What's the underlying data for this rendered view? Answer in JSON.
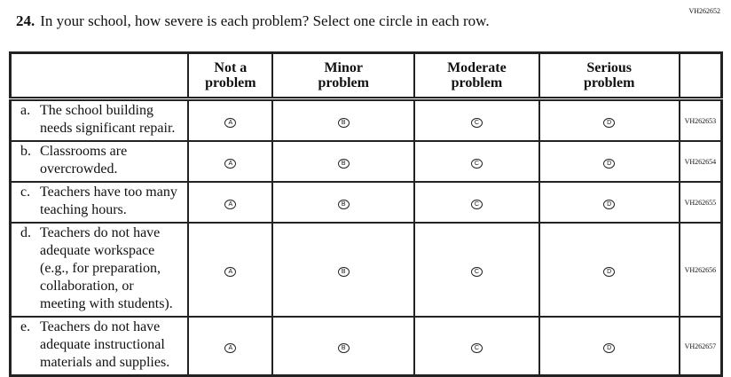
{
  "page_code": "VH262652",
  "question": {
    "number": "24.",
    "text": "In your school, how severe is each problem? Select one circle in each row."
  },
  "columns": [
    "Not a problem",
    "Minor problem",
    "Moderate problem",
    "Serious problem"
  ],
  "bubble_letters": [
    "A",
    "B",
    "C",
    "D"
  ],
  "rows": [
    {
      "letter": "a.",
      "text": "The school building needs significant repair.",
      "code": "VH262653"
    },
    {
      "letter": "b.",
      "text": "Classrooms are overcrowded.",
      "code": "VH262654"
    },
    {
      "letter": "c.",
      "text": "Teachers have too many teaching hours.",
      "code": "VH262655"
    },
    {
      "letter": "d.",
      "text": "Teachers do not have adequate workspace (e.g., for preparation, collaboration, or meeting with students).",
      "code": "VH262656"
    },
    {
      "letter": "e.",
      "text": "Teachers do not have adequate instructional materials and supplies.",
      "code": "VH262657"
    }
  ]
}
